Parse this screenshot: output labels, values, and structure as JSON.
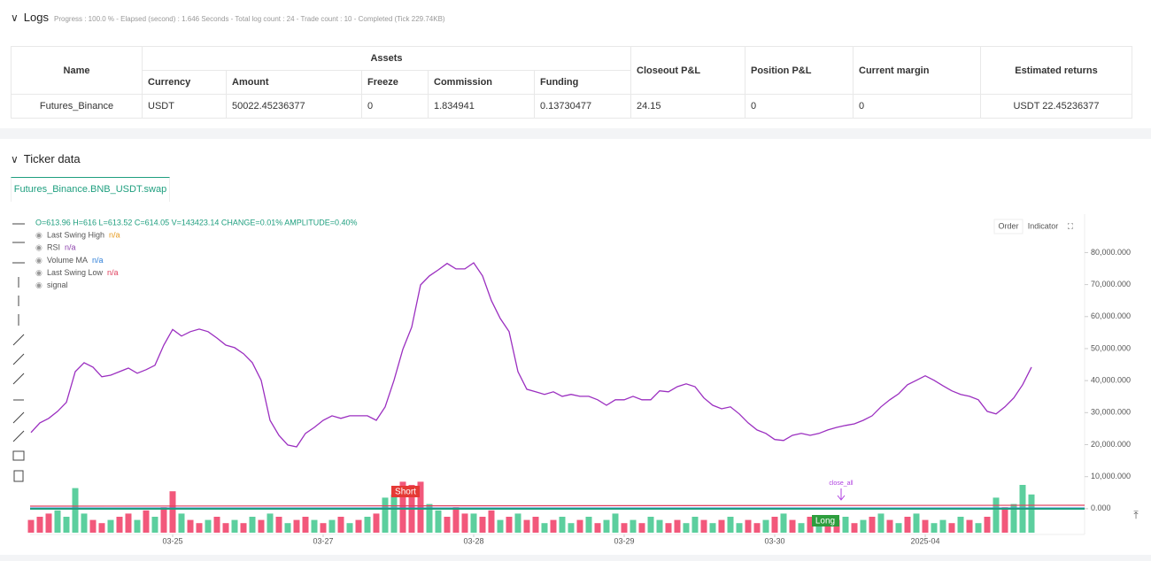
{
  "logs": {
    "title": "Logs",
    "progress": "Progress : 100.0 % - Elapsed (second) : 1.646 Seconds - Total log count : 24 - Trade count : 10 - Completed (Tick 229.74KB)"
  },
  "table": {
    "header": [
      "Name",
      "Assets",
      "Closeout P&L",
      "Position P&L",
      "Current margin",
      "Estimated returns"
    ],
    "subheader": [
      "Currency",
      "Amount",
      "Freeze",
      "Commission",
      "Funding"
    ],
    "rows": [
      [
        "Futures_Binance",
        "USDT",
        "50022.45236377",
        "0",
        "1.834941",
        "0.13730477",
        "24.15",
        "0",
        "0",
        "USDT 22.45236377"
      ]
    ]
  },
  "ticker": {
    "title": "Ticker data",
    "tab": "Futures_Binance.BNB_USDT.swap",
    "buttons": [
      "Order",
      "Indicator"
    ],
    "ohlc": "O=613.96 H=616 L=613.52 C=614.05 V=143423.14 CHANGE=0.01% AMPLITUDE=0.40%",
    "indicators": [
      {
        "name": "Last Swing High",
        "value": "n/a",
        "color": "#e69a1f"
      },
      {
        "name": "RSI",
        "value": "n/a",
        "color": "#8e44ad"
      },
      {
        "name": "Volume MA",
        "value": "n/a",
        "color": "#2f7fd8"
      },
      {
        "name": "Last Swing Low",
        "value": "n/a",
        "color": "#e0405e"
      },
      {
        "name": "signal"
      }
    ]
  },
  "chart_data": {
    "type": "line",
    "color": "#9b2fc0",
    "values": [
      23800,
      26800,
      28200,
      30400,
      33200,
      42800,
      45600,
      44200,
      41200,
      41700,
      42800,
      43900,
      42300,
      43400,
      44800,
      51100,
      56000,
      53900,
      55300,
      56100,
      55300,
      53300,
      51100,
      50300,
      48400,
      45600,
      40100,
      27600,
      22900,
      19900,
      19300,
      23500,
      25400,
      27600,
      29000,
      28200,
      29000,
      29000,
      29000,
      27600,
      31800,
      40100,
      49800,
      56700,
      69900,
      72700,
      74600,
      76600,
      74900,
      74900,
      76800,
      72700,
      65000,
      59400,
      55300,
      42800,
      37300,
      36500,
      35700,
      36500,
      35100,
      35700,
      35100,
      35100,
      34000,
      32300,
      34000,
      34000,
      35100,
      34000,
      34000,
      36800,
      36500,
      38100,
      39000,
      38100,
      34600,
      32300,
      31200,
      31800,
      29600,
      26800,
      24600,
      23500,
      21600,
      21300,
      22900,
      23500,
      22900,
      23500,
      24600,
      25400,
      26000,
      26500,
      27600,
      29000,
      31800,
      34000,
      35900,
      38700,
      40100,
      41500,
      40100,
      38400,
      36800,
      35700,
      35100,
      34000,
      30400,
      29600,
      31800,
      34600,
      38700,
      44200
    ],
    "xlim": [
      0,
      119
    ],
    "xticks": [
      {
        "value": 16,
        "label": "03-25"
      },
      {
        "value": 33,
        "label": "03-27"
      },
      {
        "value": 50,
        "label": "03-28"
      },
      {
        "value": 67,
        "label": "03-29"
      },
      {
        "value": 84,
        "label": "03-30"
      },
      {
        "value": 101,
        "label": "2025-04"
      }
    ],
    "ylim": [
      -7500,
      92000
    ],
    "yticks": [
      {
        "value": 0,
        "label": "0.000"
      },
      {
        "value": 10000,
        "label": "10,000.000"
      },
      {
        "value": 20000,
        "label": "20,000.000"
      },
      {
        "value": 30000,
        "label": "30,000.000"
      },
      {
        "value": 40000,
        "label": "40,000.000"
      },
      {
        "value": 50000,
        "label": "50,000.000"
      },
      {
        "value": 60000,
        "label": "60,000.000"
      },
      {
        "value": 70000,
        "label": "70,000.000"
      },
      {
        "value": 80000,
        "label": "80,000.000"
      }
    ],
    "y2lim": [
      0,
      100
    ],
    "volume": {
      "up": {
        "color": "#5ccf9e",
        "values": [
          null,
          null,
          null,
          7,
          5,
          14,
          6,
          null,
          null,
          4,
          null,
          null,
          4,
          null,
          5,
          null,
          null,
          6,
          null,
          null,
          4,
          null,
          null,
          4,
          null,
          5,
          null,
          6,
          null,
          3,
          null,
          null,
          4,
          null,
          4,
          null,
          3,
          null,
          5,
          null,
          11,
          12,
          null,
          null,
          null,
          9,
          7,
          null,
          null,
          null,
          6,
          null,
          null,
          4,
          null,
          6,
          null,
          null,
          3,
          null,
          5,
          3,
          null,
          5,
          null,
          4,
          6,
          null,
          4,
          null,
          5,
          4,
          null,
          null,
          3,
          5,
          null,
          3,
          null,
          5,
          3,
          null,
          null,
          4,
          null,
          6,
          null,
          3,
          null,
          4,
          null,
          null,
          5,
          null,
          4,
          null,
          6,
          null,
          3,
          null,
          6,
          null,
          3,
          4,
          null,
          5,
          null,
          3,
          null,
          11,
          null,
          9,
          15,
          12
        ]
      },
      "down": {
        "color": "#f2587b",
        "values": [
          4,
          5,
          6,
          null,
          null,
          null,
          null,
          4,
          3,
          null,
          5,
          6,
          null,
          7,
          null,
          8,
          13,
          null,
          4,
          3,
          null,
          5,
          3,
          null,
          3,
          null,
          4,
          null,
          5,
          null,
          4,
          5,
          null,
          3,
          null,
          5,
          null,
          4,
          null,
          6,
          null,
          null,
          16,
          15,
          16,
          null,
          null,
          5,
          8,
          6,
          null,
          5,
          7,
          null,
          5,
          null,
          4,
          5,
          null,
          4,
          null,
          null,
          4,
          null,
          3,
          null,
          null,
          3,
          null,
          3,
          null,
          null,
          3,
          4,
          null,
          null,
          4,
          null,
          4,
          null,
          null,
          4,
          3,
          null,
          5,
          null,
          4,
          null,
          5,
          null,
          3,
          4,
          null,
          3,
          null,
          5,
          null,
          4,
          null,
          5,
          null,
          4,
          null,
          null,
          3,
          null,
          4,
          null,
          5,
          null,
          8,
          null,
          null,
          null
        ]
      }
    },
    "annotations": [
      "Short",
      "Long",
      "close_all"
    ]
  }
}
